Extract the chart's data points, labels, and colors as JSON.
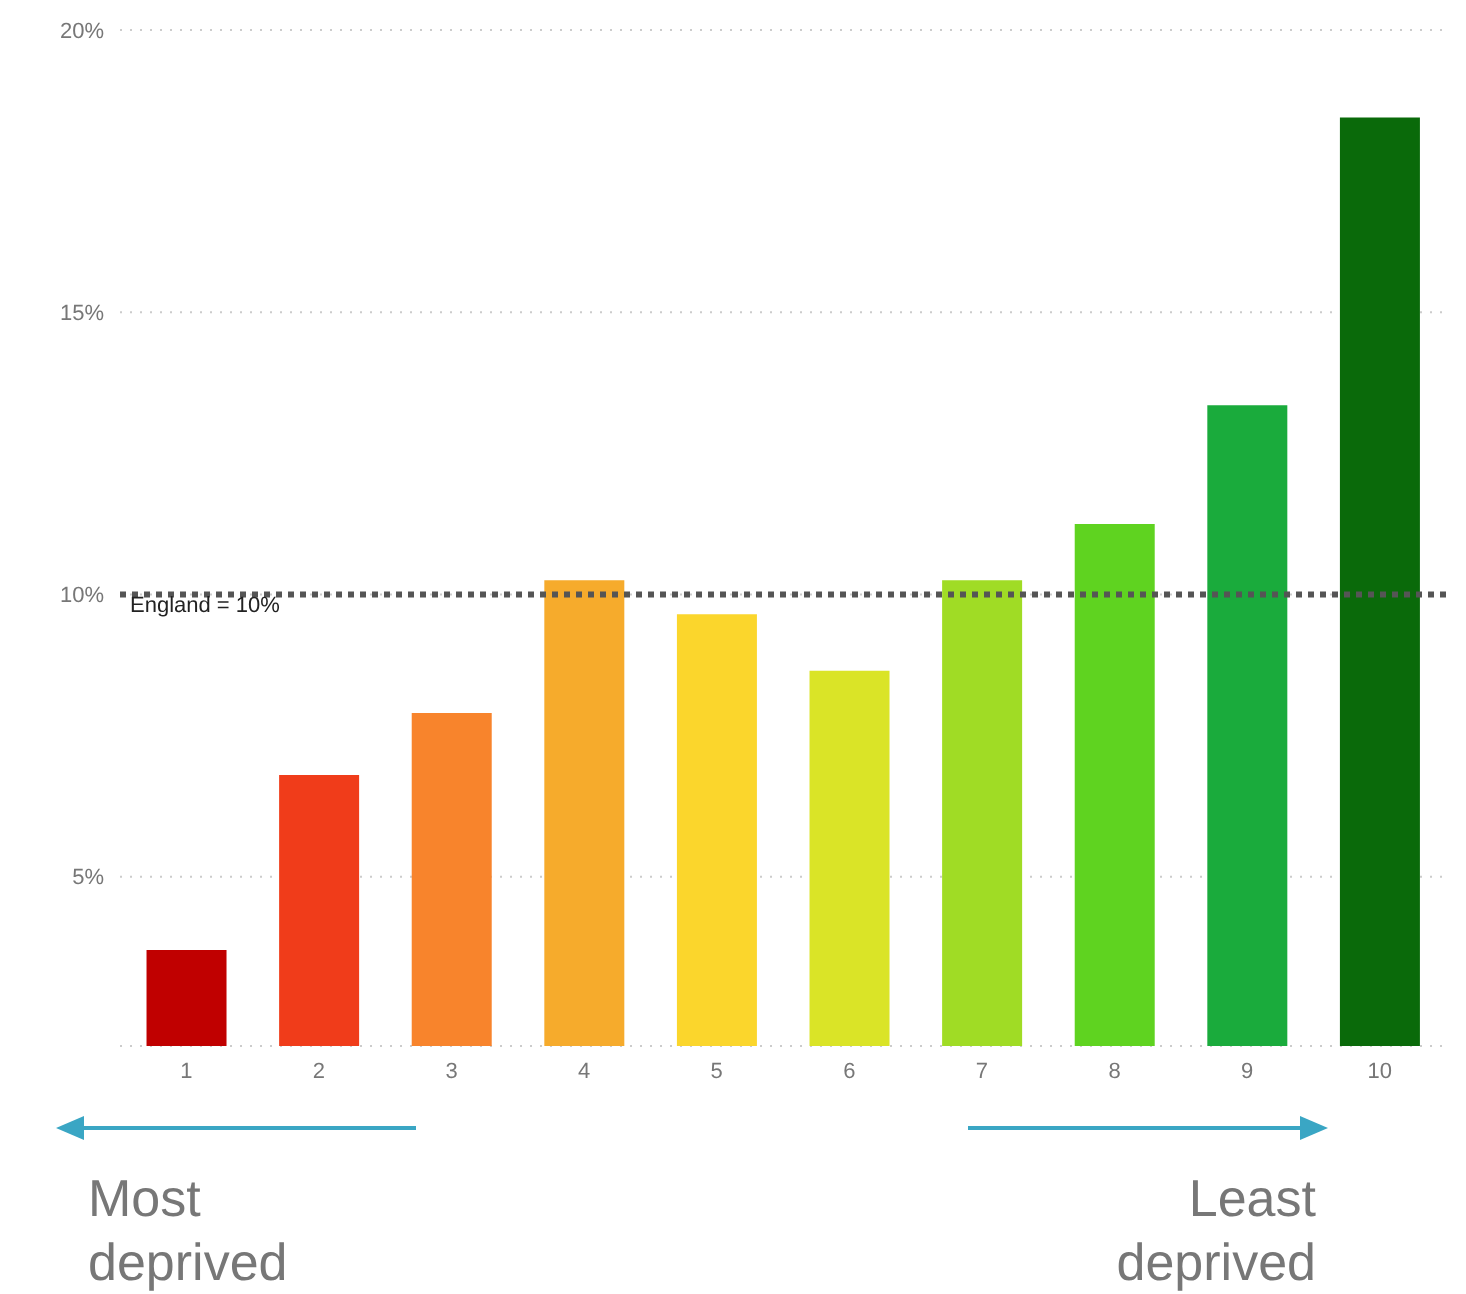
{
  "chart_data": {
    "type": "bar",
    "categories": [
      "1",
      "2",
      "3",
      "4",
      "5",
      "6",
      "7",
      "8",
      "9",
      "10"
    ],
    "values": [
      3.7,
      6.8,
      7.9,
      10.25,
      9.65,
      8.65,
      10.25,
      11.25,
      13.35,
      18.45
    ],
    "colors": [
      "#c00000",
      "#f03c1a",
      "#f8842c",
      "#f6ab2c",
      "#fbd62c",
      "#dae427",
      "#a0dc25",
      "#5fd320",
      "#1aab3c",
      "#0a6a0a"
    ],
    "ylim": [
      2,
      20
    ],
    "yticks": [
      {
        "value": 5,
        "label": "5%"
      },
      {
        "value": 10,
        "label": "10%"
      },
      {
        "value": 15,
        "label": "15%"
      },
      {
        "value": 20,
        "label": "20%"
      }
    ],
    "grid": "y",
    "ref_lines": [
      {
        "axis": "y",
        "value": 10,
        "label": "England = 10%",
        "color": "#555555",
        "line_style": "dotted"
      }
    ],
    "annotations": [
      "Most deprived",
      "Least deprived"
    ]
  }
}
